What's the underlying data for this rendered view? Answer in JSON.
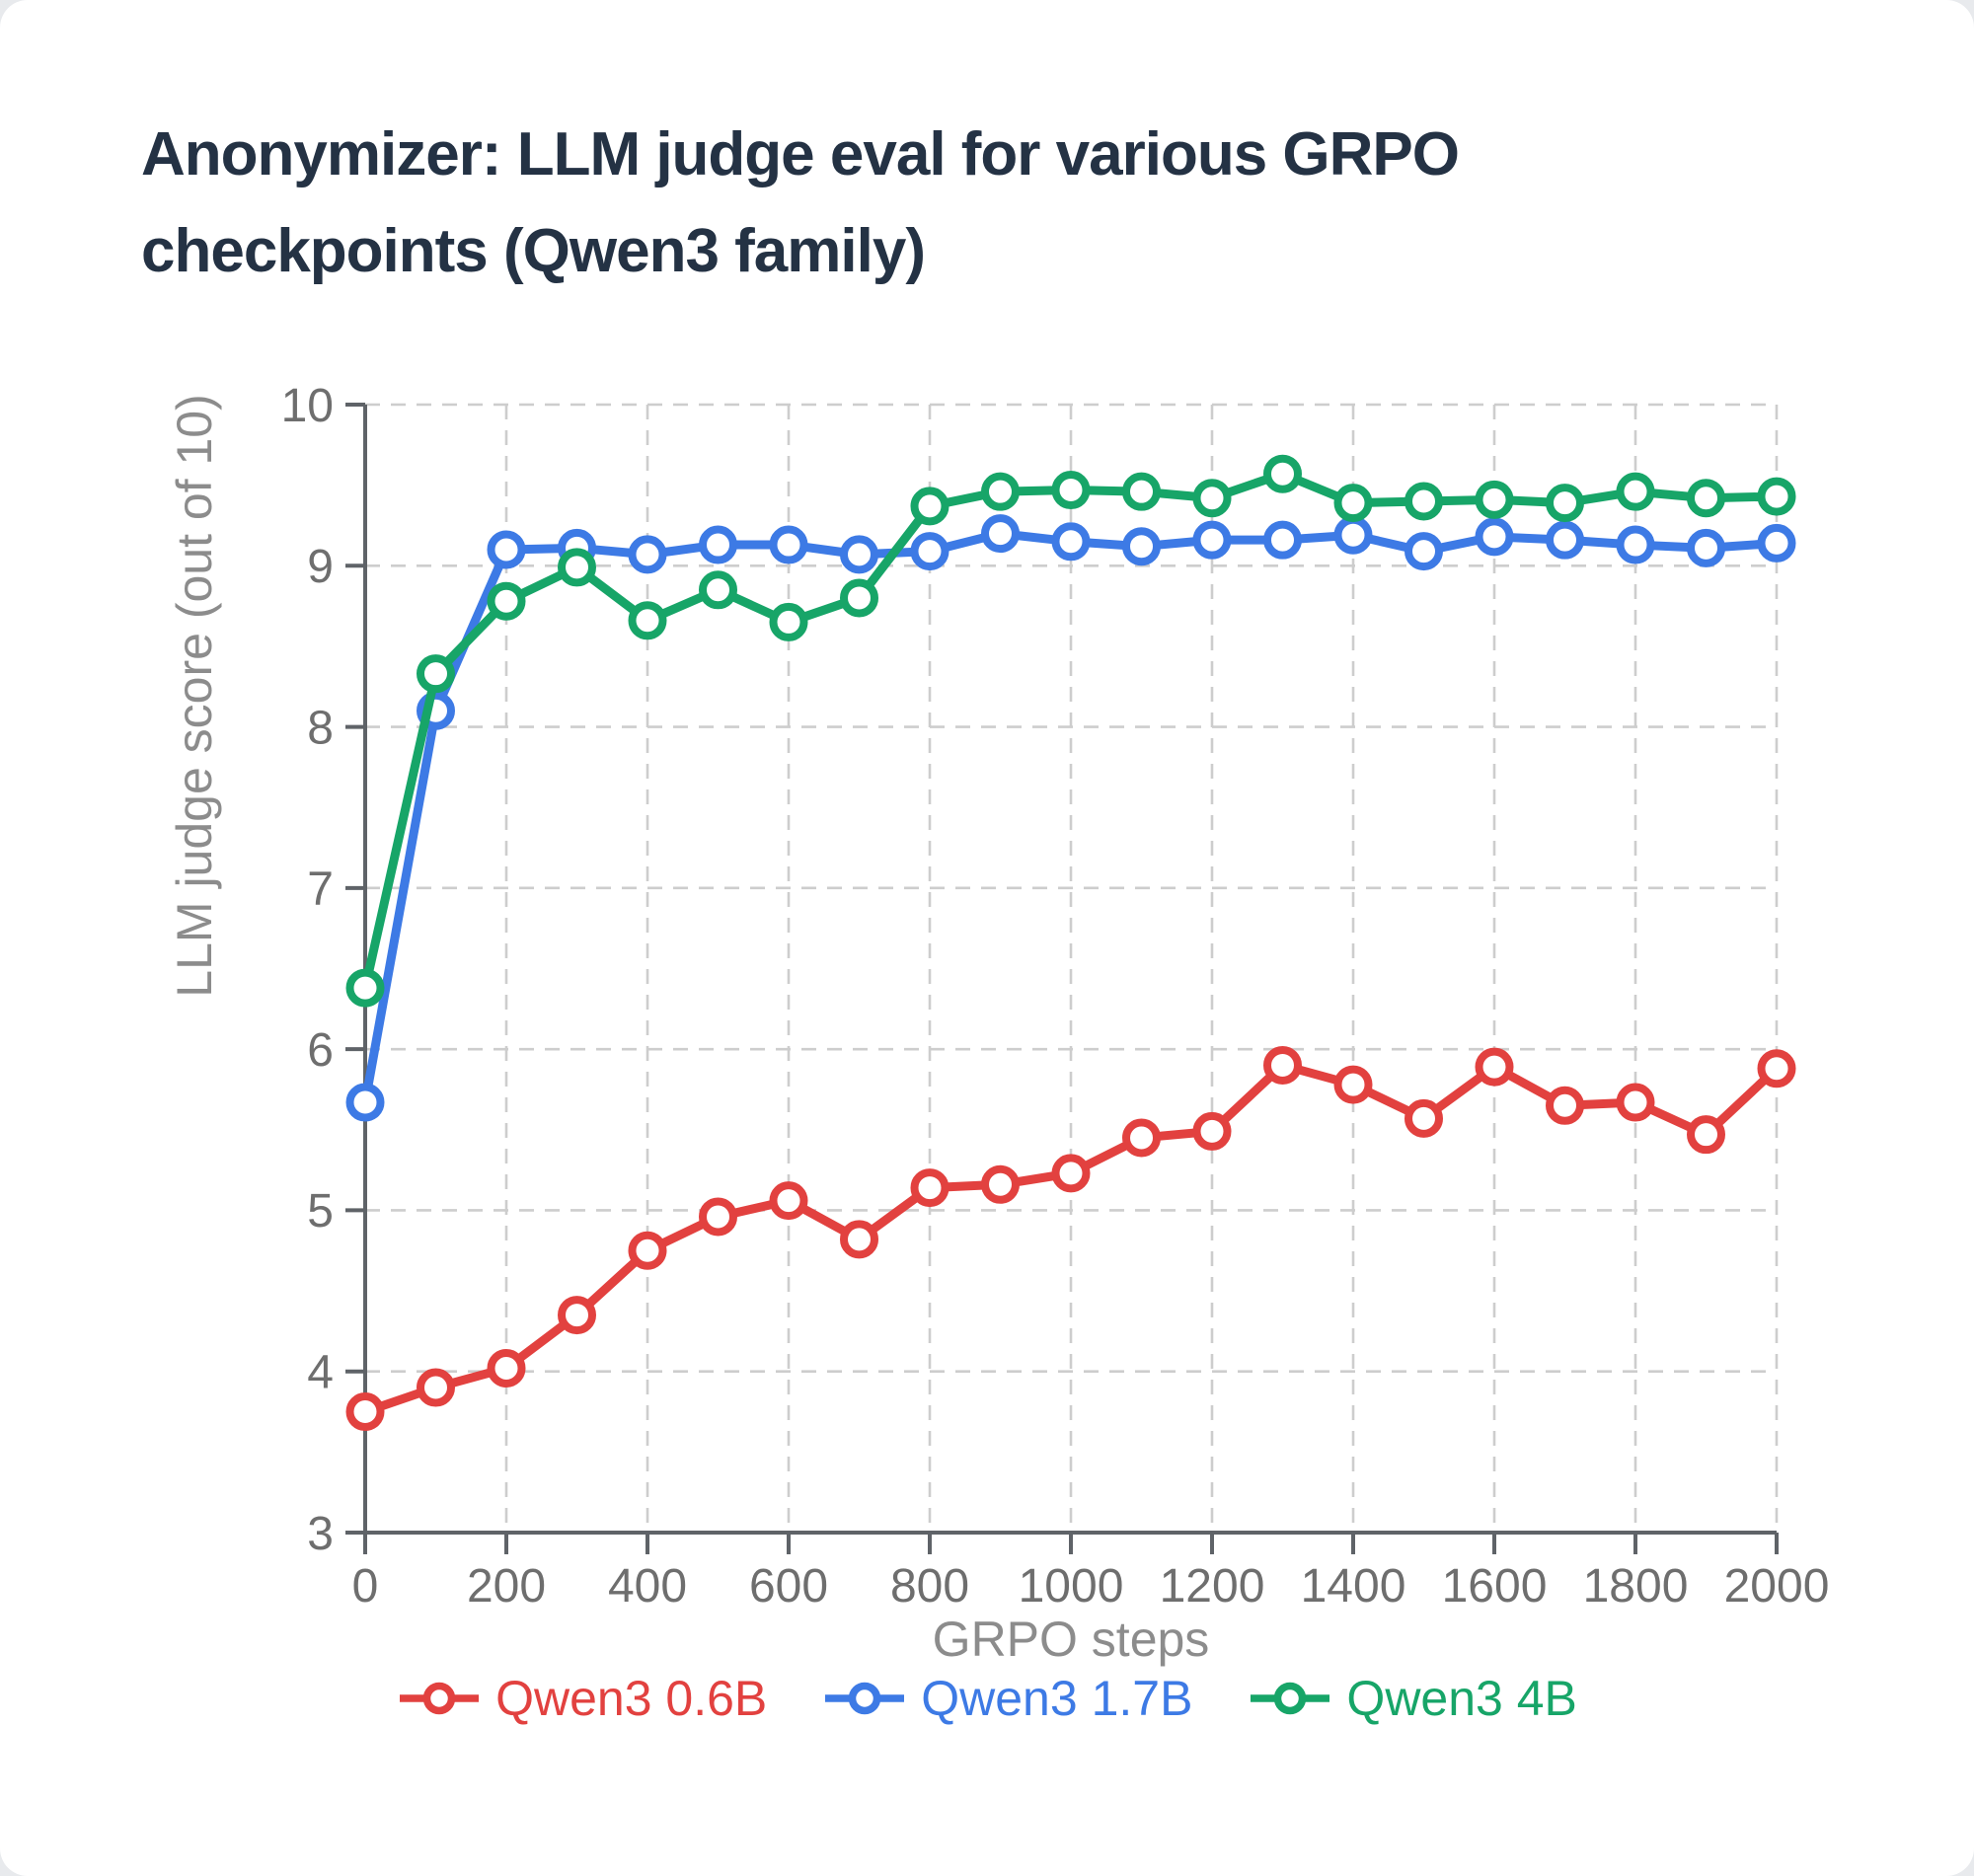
{
  "title": {
    "line1": "Anonymizer: LLM judge eval for various GRPO",
    "line2": "checkpoints (Qwen3 family)",
    "color": "#243244"
  },
  "chart_data": {
    "type": "line",
    "title": "Anonymizer: LLM judge eval for various GRPO checkpoints (Qwen3 family)",
    "xlabel": "GRPO steps",
    "ylabel": "LLM judge score (out of 10)",
    "xlim": [
      0,
      2000
    ],
    "ylim": [
      3,
      10
    ],
    "xticks": [
      0,
      200,
      400,
      600,
      800,
      1000,
      1200,
      1400,
      1600,
      1800,
      2000
    ],
    "yticks": [
      3,
      4,
      5,
      6,
      7,
      8,
      9,
      10
    ],
    "grid": true,
    "legend_position": "bottom",
    "x": [
      0,
      100,
      200,
      300,
      400,
      500,
      600,
      700,
      800,
      900,
      1000,
      1100,
      1200,
      1300,
      1400,
      1500,
      1600,
      1700,
      1800,
      1900,
      2000
    ],
    "series": [
      {
        "name": "Qwen3 0.6B",
        "color": "#e2413f",
        "values": [
          3.75,
          3.9,
          4.02,
          4.35,
          4.75,
          4.96,
          5.06,
          4.82,
          5.14,
          5.16,
          5.23,
          5.45,
          5.49,
          5.9,
          5.78,
          5.57,
          5.89,
          5.65,
          5.67,
          5.47,
          5.88
        ]
      },
      {
        "name": "Qwen3 1.7B",
        "color": "#3d7ae5",
        "values": [
          5.67,
          8.1,
          9.1,
          9.11,
          9.07,
          9.13,
          9.13,
          9.07,
          9.09,
          9.2,
          9.15,
          9.12,
          9.16,
          9.16,
          9.19,
          9.09,
          9.18,
          9.16,
          9.13,
          9.11,
          9.14
        ]
      },
      {
        "name": "Qwen3 4B",
        "color": "#17a568",
        "values": [
          6.38,
          8.33,
          8.78,
          8.99,
          8.66,
          8.85,
          8.65,
          8.8,
          9.37,
          9.46,
          9.47,
          9.46,
          9.42,
          9.57,
          9.39,
          9.4,
          9.41,
          9.39,
          9.46,
          9.42,
          9.43
        ]
      }
    ]
  },
  "style": {
    "grid_color": "#cdcdcd",
    "axis_color": "#5f6368",
    "tick_label_color": "#6e6e6e",
    "axis_label_color": "#8c8c8c",
    "marker_fill": "#ffffff"
  }
}
